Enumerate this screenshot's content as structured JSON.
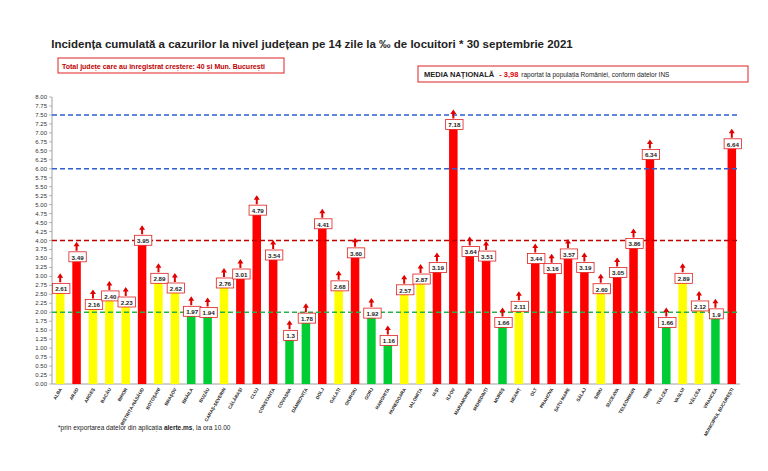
{
  "chart_data": {
    "type": "bar",
    "title": "Incidența cumulată a cazurilor la nivel județean pe 14 zile la ‰ de locuitori * 30 septembrie 2021",
    "annotations": [
      "Total județe care au înregistrat creștere: 40 și Mun. București",
      "MEDIA NAȚIONALĂ",
      "- 3,98",
      "raportat la populația României, conform datelor INS",
      "*prin exportarea datelor din aplicația ",
      "alerte.ms",
      ", la ora 10.00"
    ],
    "categories": [
      "ALBA",
      "ARAD",
      "ARGEȘ",
      "BACĂU",
      "BIHOR",
      "BISTRIȚA-NĂSĂUD",
      "BOTOȘANI",
      "BRAȘOV",
      "BRĂILA",
      "BUZĂU",
      "CARAȘ-SEVERIN",
      "CĂLĂRAȘI",
      "CLUJ",
      "CONSTANȚA",
      "COVASNA",
      "DÂMBOVIȚA",
      "DOLJ",
      "GALAȚI",
      "GIURGIU",
      "GORJ",
      "HARGHITA",
      "HUNEDOARA",
      "IALOMIȚA",
      "IAȘI",
      "ILFOV",
      "MARAMUREȘ",
      "MEHEDINȚI",
      "MUREȘ",
      "NEAMȚ",
      "OLT",
      "PRAHOVA",
      "SATU MARE",
      "SĂLAJ",
      "SIBIU",
      "SUCEAVA",
      "TELEORMAN",
      "TIMIȘ",
      "TULCEA",
      "VASLUI",
      "VÂLCEA",
      "VRANCEA",
      "MUNICIPIUL BUCUREȘTI"
    ],
    "values": [
      2.61,
      3.49,
      2.16,
      2.4,
      2.23,
      3.95,
      2.89,
      2.62,
      1.97,
      1.94,
      2.76,
      3.01,
      4.79,
      3.54,
      1.3,
      1.78,
      4.41,
      2.68,
      3.6,
      1.92,
      1.16,
      2.57,
      2.87,
      3.19,
      7.18,
      3.64,
      3.51,
      1.66,
      2.11,
      3.44,
      3.16,
      3.57,
      3.19,
      2.6,
      3.05,
      3.86,
      6.34,
      1.66,
      2.89,
      2.12,
      1.9,
      6.64
    ],
    "value_labels": [
      "2.61",
      "3.49",
      "2.16",
      "2.40",
      "2.23",
      "3.95",
      "2.89",
      "2.62",
      "1.97",
      "1.94",
      "2.76",
      "3.01",
      "4.79",
      "3.54",
      "1.3",
      "1.78",
      "4.41",
      "2.68",
      "3.60",
      "1.92",
      "1.16",
      "2.57",
      "2.87",
      "3.19",
      "7.18",
      "3.64",
      "3.51",
      "1.66",
      "2.11",
      "3.44",
      "3.16",
      "3.57",
      "3.19",
      "2.60",
      "3.05",
      "3.86",
      "6.34",
      "1.66",
      "2.89",
      "2.12",
      "1.9",
      "6.64"
    ],
    "colors": [
      "#ffff00",
      "#ff0000",
      "#ffff00",
      "#ffff00",
      "#ffff00",
      "#ff0000",
      "#ffff00",
      "#ffff00",
      "#00cc33",
      "#00cc33",
      "#ffff00",
      "#ff0000",
      "#ff0000",
      "#ff0000",
      "#00cc33",
      "#00cc33",
      "#ff0000",
      "#ffff00",
      "#ff0000",
      "#00cc33",
      "#00cc33",
      "#ffff00",
      "#ffff00",
      "#ff0000",
      "#ff0000",
      "#ff0000",
      "#ff0000",
      "#00cc33",
      "#ffff00",
      "#ff0000",
      "#ff0000",
      "#ff0000",
      "#ff0000",
      "#ffff00",
      "#ff0000",
      "#ff0000",
      "#ff0000",
      "#00cc33",
      "#ffff00",
      "#ffff00",
      "#00cc33",
      "#ff0000"
    ],
    "thresholds": [
      {
        "value": 2,
        "color": "#22b14c"
      },
      {
        "value": 4,
        "color": "#c00000"
      },
      {
        "value": 6,
        "color": "#2f5fd0"
      },
      {
        "value": 7.5,
        "color": "#2f5fd0"
      }
    ],
    "ylim": [
      0,
      8
    ],
    "yticks": [
      {
        "value": 0,
        "label": "0.00"
      },
      {
        "value": 0.25,
        "label": "0.25"
      },
      {
        "value": 0.5,
        "label": "0.50"
      },
      {
        "value": 0.75,
        "label": "0.75"
      },
      {
        "value": 1,
        "label": "1.00"
      },
      {
        "value": 1.25,
        "label": "1.25"
      },
      {
        "value": 1.5,
        "label": "1.50"
      },
      {
        "value": 1.75,
        "label": "1.75"
      },
      {
        "value": 2,
        "label": "2.00"
      },
      {
        "value": 2.25,
        "label": "2.25"
      },
      {
        "value": 2.5,
        "label": "2.50"
      },
      {
        "value": 2.75,
        "label": "2.75"
      },
      {
        "value": 3,
        "label": "3.00"
      },
      {
        "value": 3.25,
        "label": "3.25"
      },
      {
        "value": 3.5,
        "label": "3.50"
      },
      {
        "value": 3.75,
        "label": "3.75"
      },
      {
        "value": 4,
        "label": "4.00"
      },
      {
        "value": 4.25,
        "label": "4.25"
      },
      {
        "value": 4.5,
        "label": "4.50"
      },
      {
        "value": 4.75,
        "label": "4.75"
      },
      {
        "value": 5,
        "label": "5.00"
      },
      {
        "value": 5.25,
        "label": "5.25"
      },
      {
        "value": 5.5,
        "label": "5.50"
      },
      {
        "value": 5.75,
        "label": "5.75"
      },
      {
        "value": 6,
        "label": "6.00"
      },
      {
        "value": 6.25,
        "label": "6.25"
      },
      {
        "value": 6.5,
        "label": "6.50"
      },
      {
        "value": 6.75,
        "label": "6.75"
      },
      {
        "value": 7,
        "label": "7.00"
      },
      {
        "value": 7.25,
        "label": "7.25"
      },
      {
        "value": 7.5,
        "label": "7.50"
      },
      {
        "value": 7.75,
        "label": "7.75"
      },
      {
        "value": 8,
        "label": "8.00"
      }
    ],
    "grid": false,
    "data_labels": true
  }
}
